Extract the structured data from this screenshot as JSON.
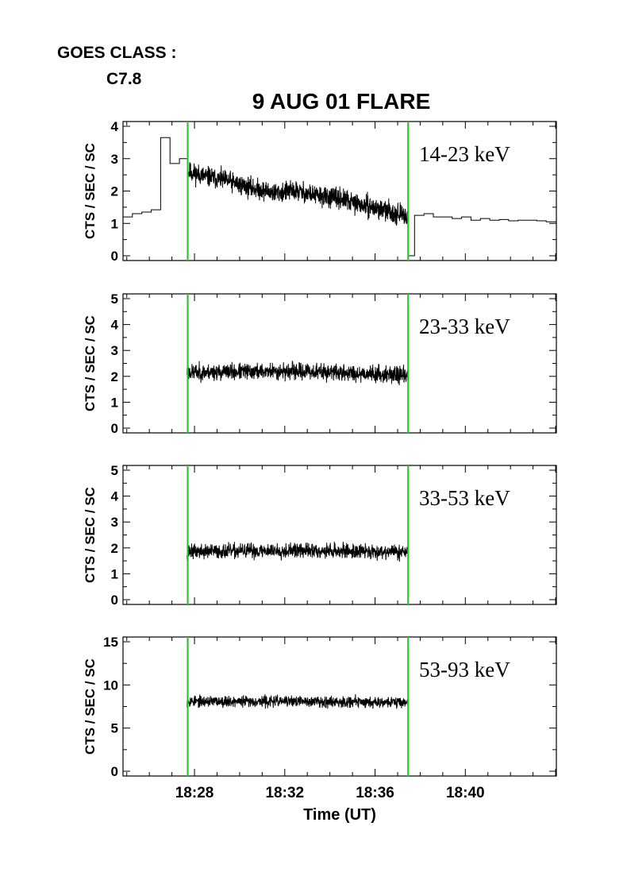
{
  "header": {
    "goes_label": "GOES CLASS :",
    "goes_value": "C7.8",
    "title": "9 AUG 01 FLARE"
  },
  "colors": {
    "marker_line": "#22cc22",
    "trace": "#000000",
    "axis": "#000000"
  },
  "chart_data": [
    {
      "type": "line",
      "band": "14-23 keV",
      "ylabel": "CTS / SEC / SC",
      "xlabel": "",
      "ylim": [
        0,
        4
      ],
      "yticks": [
        "0",
        "1",
        "2",
        "3",
        "4"
      ],
      "xlim": [
        "18:24:50",
        "18:44:02"
      ],
      "markers": [
        "18:27:42",
        "18:37:28"
      ],
      "series": [
        {
          "name": "",
          "style": "steps",
          "x": [
            "18:24:50",
            "18:25:15",
            "18:25:40",
            "18:26:05",
            "18:26:30",
            "18:26:55",
            "18:27:20",
            "18:27:42"
          ],
          "values": [
            1.2,
            1.3,
            1.35,
            1.42,
            3.65,
            2.85,
            3.0,
            2.8
          ]
        },
        {
          "name": "",
          "style": "noisy",
          "seed": 11,
          "noise": 0.22,
          "x": [
            "18:27:42",
            "18:28:30",
            "18:29:30",
            "18:30:30",
            "18:31:30",
            "18:32:30",
            "18:33:30",
            "18:34:30",
            "18:35:30",
            "18:36:30",
            "18:37:28"
          ],
          "values": [
            2.6,
            2.45,
            2.3,
            2.1,
            1.95,
            2.0,
            1.85,
            1.75,
            1.55,
            1.4,
            1.2
          ]
        },
        {
          "name": "",
          "style": "steps",
          "x": [
            "18:37:30",
            "18:37:45",
            "18:38:10",
            "18:38:35",
            "18:39:00",
            "18:39:25",
            "18:39:50",
            "18:40:15",
            "18:40:40",
            "18:41:05",
            "18:41:30",
            "18:41:55",
            "18:42:20",
            "18:42:45",
            "18:43:10",
            "18:43:35",
            "18:44:02"
          ],
          "values": [
            0.0,
            1.25,
            1.3,
            1.2,
            1.2,
            1.15,
            1.2,
            1.1,
            1.15,
            1.1,
            1.12,
            1.08,
            1.1,
            1.1,
            1.08,
            1.05,
            0.9
          ]
        }
      ]
    },
    {
      "type": "line",
      "band": "23-33 keV",
      "ylabel": "CTS / SEC / SC",
      "xlabel": "",
      "ylim": [
        0,
        5
      ],
      "yticks": [
        "0",
        "1",
        "2",
        "3",
        "4",
        "5"
      ],
      "xlim": [
        "18:24:50",
        "18:44:02"
      ],
      "markers": [
        "18:27:42",
        "18:37:28"
      ],
      "series": [
        {
          "name": "",
          "style": "noisy",
          "seed": 23,
          "noise": 0.22,
          "x": [
            "18:27:40",
            "18:32:30",
            "18:37:28"
          ],
          "values": [
            2.15,
            2.2,
            2.05
          ]
        }
      ]
    },
    {
      "type": "line",
      "band": "33-53 keV",
      "ylabel": "CTS / SEC / SC",
      "xlabel": "",
      "ylim": [
        0,
        5
      ],
      "yticks": [
        "0",
        "1",
        "2",
        "3",
        "4",
        "5"
      ],
      "xlim": [
        "18:24:50",
        "18:44:02"
      ],
      "markers": [
        "18:27:42",
        "18:37:28"
      ],
      "series": [
        {
          "name": "",
          "style": "noisy",
          "seed": 37,
          "noise": 0.2,
          "x": [
            "18:27:40",
            "18:32:30",
            "18:37:28"
          ],
          "values": [
            1.85,
            1.9,
            1.85
          ]
        }
      ]
    },
    {
      "type": "line",
      "band": "53-93 keV",
      "ylabel": "CTS / SEC / SC",
      "xlabel": "Time (UT)",
      "ylim": [
        0,
        15
      ],
      "yticks": [
        "0",
        "5",
        "10",
        "15"
      ],
      "xlim": [
        "18:24:50",
        "18:44:02"
      ],
      "xticks": [
        "18:28",
        "18:32",
        "18:36",
        "18:40"
      ],
      "markers": [
        "18:27:42",
        "18:37:28"
      ],
      "series": [
        {
          "name": "",
          "style": "noisy",
          "seed": 53,
          "noise": 0.45,
          "x": [
            "18:27:40",
            "18:32:30",
            "18:37:28"
          ],
          "values": [
            8.1,
            8.1,
            8.0
          ]
        }
      ]
    }
  ]
}
